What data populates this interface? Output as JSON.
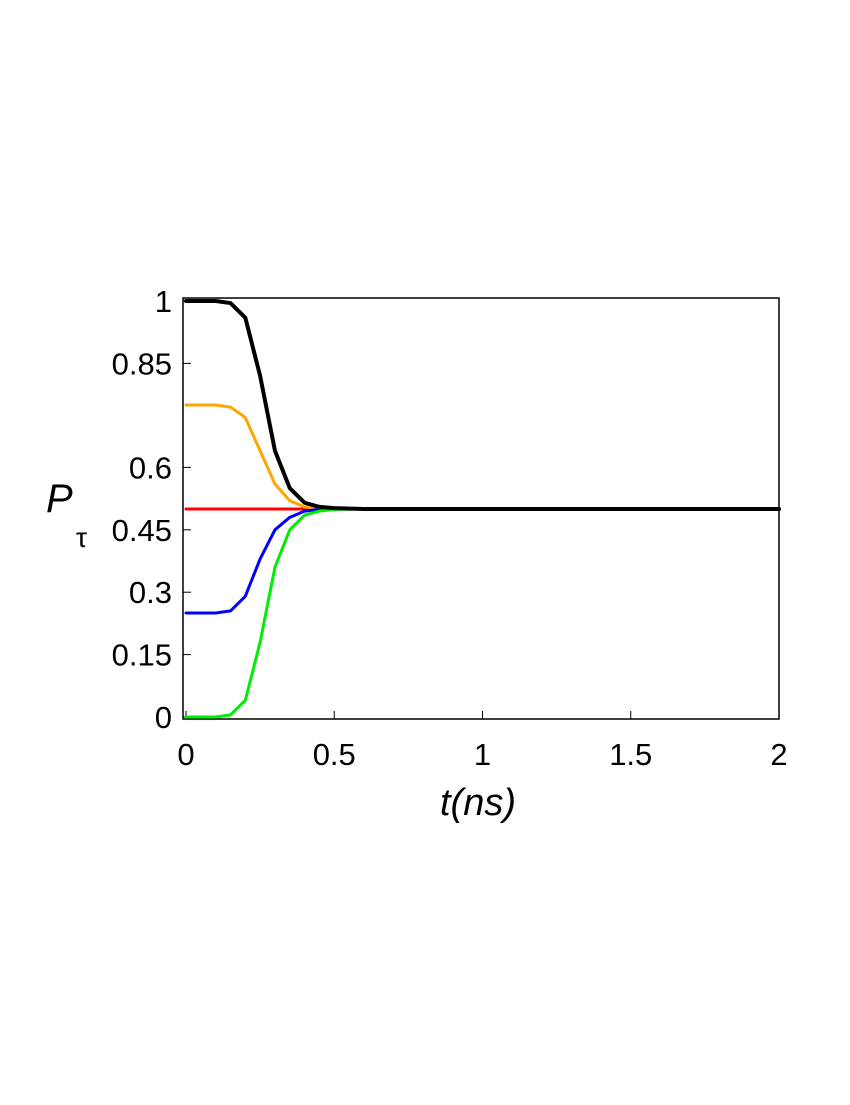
{
  "chart_data": {
    "type": "line",
    "xlabel": "t(ns)",
    "ylabel": "P",
    "ylabel_sub": "τ",
    "x": [
      0,
      0.05,
      0.1,
      0.15,
      0.2,
      0.25,
      0.3,
      0.35,
      0.4,
      0.45,
      0.5,
      0.6,
      0.8,
      1,
      1.5,
      2
    ],
    "series": [
      {
        "color": "#ff0000",
        "values": [
          0.5,
          0.5,
          0.5,
          0.5,
          0.5,
          0.5,
          0.5,
          0.5,
          0.5,
          0.5,
          0.5,
          0.5,
          0.5,
          0.5,
          0.5,
          0.5
        ]
      },
      {
        "color": "#ffa500",
        "values": [
          0.75,
          0.75,
          0.75,
          0.745,
          0.72,
          0.64,
          0.56,
          0.52,
          0.505,
          0.501,
          0.5,
          0.5,
          0.5,
          0.5,
          0.5,
          0.5
        ]
      },
      {
        "color": "#0000ff",
        "values": [
          0.25,
          0.25,
          0.25,
          0.255,
          0.29,
          0.38,
          0.45,
          0.48,
          0.495,
          0.499,
          0.5,
          0.5,
          0.5,
          0.5,
          0.5,
          0.5
        ]
      },
      {
        "color": "#00ee00",
        "values": [
          0,
          0,
          0,
          0.005,
          0.04,
          0.18,
          0.36,
          0.45,
          0.485,
          0.495,
          0.499,
          0.5,
          0.5,
          0.5,
          0.5,
          0.5
        ]
      },
      {
        "color": "#000000",
        "values": [
          1,
          1,
          1,
          0.995,
          0.96,
          0.82,
          0.64,
          0.55,
          0.515,
          0.505,
          0.502,
          0.5,
          0.5,
          0.5,
          0.5,
          0.5
        ]
      }
    ],
    "xlim": [
      0,
      2
    ],
    "ylim": [
      0,
      1
    ],
    "xticks": [
      0,
      0.5,
      1,
      1.5,
      2
    ],
    "yticks": [
      0,
      0.15,
      0.3,
      0.45,
      0.6,
      0.85,
      1
    ]
  }
}
